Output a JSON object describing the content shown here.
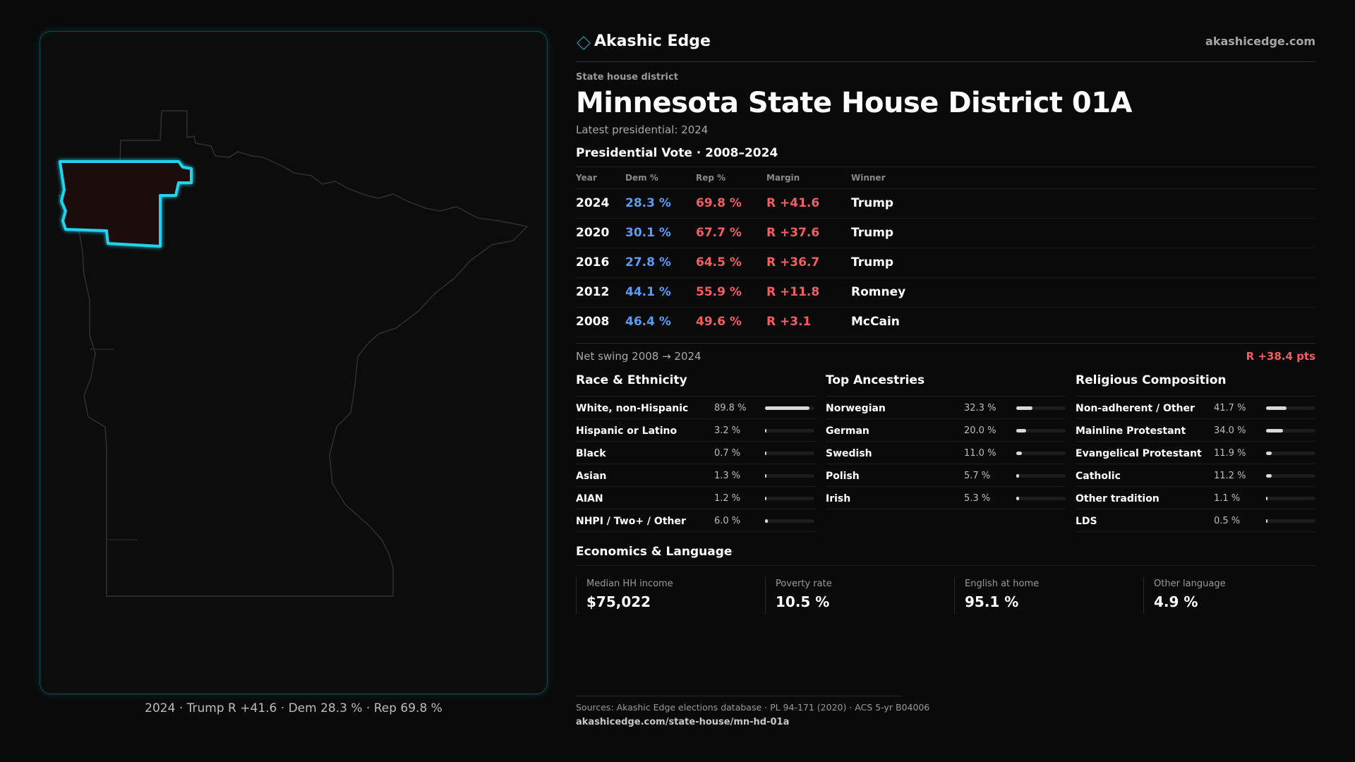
{
  "brand": {
    "name": "Akashic Edge",
    "url": "akashicedge.com",
    "icon": "diamond-icon",
    "accent": "#1fb3c9"
  },
  "district": {
    "type_label": "State house district",
    "title": "Minnesota State House District 01A",
    "latest": "Latest presidential: 2024"
  },
  "map": {
    "caption": "2024 · Trump R +41.6 · Dem 28.3 % · Rep 69.8 %",
    "highlight_color": "#22d3ee"
  },
  "presidential": {
    "title": "Presidential Vote · 2008–2024",
    "headers": {
      "year": "Year",
      "dem": "Dem %",
      "rep": "Rep %",
      "margin": "Margin",
      "winner": "Winner"
    },
    "rows": [
      {
        "year": "2024",
        "dem": "28.3 %",
        "rep": "69.8 %",
        "margin": "R +41.6",
        "winner": "Trump"
      },
      {
        "year": "2020",
        "dem": "30.1 %",
        "rep": "67.7 %",
        "margin": "R +37.6",
        "winner": "Trump"
      },
      {
        "year": "2016",
        "dem": "27.8 %",
        "rep": "64.5 %",
        "margin": "R +36.7",
        "winner": "Trump"
      },
      {
        "year": "2012",
        "dem": "44.1 %",
        "rep": "55.9 %",
        "margin": "R +11.8",
        "winner": "Romney"
      },
      {
        "year": "2008",
        "dem": "46.4 %",
        "rep": "49.6 %",
        "margin": "R +3.1",
        "winner": "McCain"
      }
    ],
    "colors": {
      "dem": "#5b9cf5",
      "rep": "#f25f63"
    }
  },
  "swing": {
    "label": "Net swing 2008 → 2024",
    "value": "R +38.4 pts"
  },
  "race": {
    "title": "Race & Ethnicity",
    "items": [
      {
        "label": "White, non-Hispanic",
        "value": "89.8 %",
        "pct": 89.8
      },
      {
        "label": "Hispanic or Latino",
        "value": "3.2 %",
        "pct": 3.2
      },
      {
        "label": "Black",
        "value": "0.7 %",
        "pct": 0.7
      },
      {
        "label": "Asian",
        "value": "1.3 %",
        "pct": 1.3
      },
      {
        "label": "AIAN",
        "value": "1.2 %",
        "pct": 1.2
      },
      {
        "label": "NHPI / Two+ / Other",
        "value": "6.0 %",
        "pct": 6.0
      }
    ]
  },
  "ancestry": {
    "title": "Top Ancestries",
    "items": [
      {
        "label": "Norwegian",
        "value": "32.3 %",
        "pct": 32.3
      },
      {
        "label": "German",
        "value": "20.0 %",
        "pct": 20.0
      },
      {
        "label": "Swedish",
        "value": "11.0 %",
        "pct": 11.0
      },
      {
        "label": "Polish",
        "value": "5.7 %",
        "pct": 5.7
      },
      {
        "label": "Irish",
        "value": "5.3 %",
        "pct": 5.3
      }
    ]
  },
  "religion": {
    "title": "Religious Composition",
    "items": [
      {
        "label": "Non-adherent / Other",
        "value": "41.7 %",
        "pct": 41.7
      },
      {
        "label": "Mainline Protestant",
        "value": "34.0 %",
        "pct": 34.0
      },
      {
        "label": "Evangelical Protestant",
        "value": "11.9 %",
        "pct": 11.9
      },
      {
        "label": "Catholic",
        "value": "11.2 %",
        "pct": 11.2
      },
      {
        "label": "Other tradition",
        "value": "1.1 %",
        "pct": 1.1
      },
      {
        "label": "LDS",
        "value": "0.5 %",
        "pct": 0.5
      }
    ]
  },
  "economics": {
    "title": "Economics & Language",
    "cards": [
      {
        "label": "Median HH income",
        "value": "$75,022"
      },
      {
        "label": "Poverty rate",
        "value": "10.5 %"
      },
      {
        "label": "English at home",
        "value": "95.1 %"
      },
      {
        "label": "Other language",
        "value": "4.9 %"
      }
    ]
  },
  "sources": {
    "line": "Sources: Akashic Edge elections database · PL 94-171 (2020) · ACS 5-yr B04006",
    "url": "akashicedge.com/state-house/mn-hd-01a"
  }
}
